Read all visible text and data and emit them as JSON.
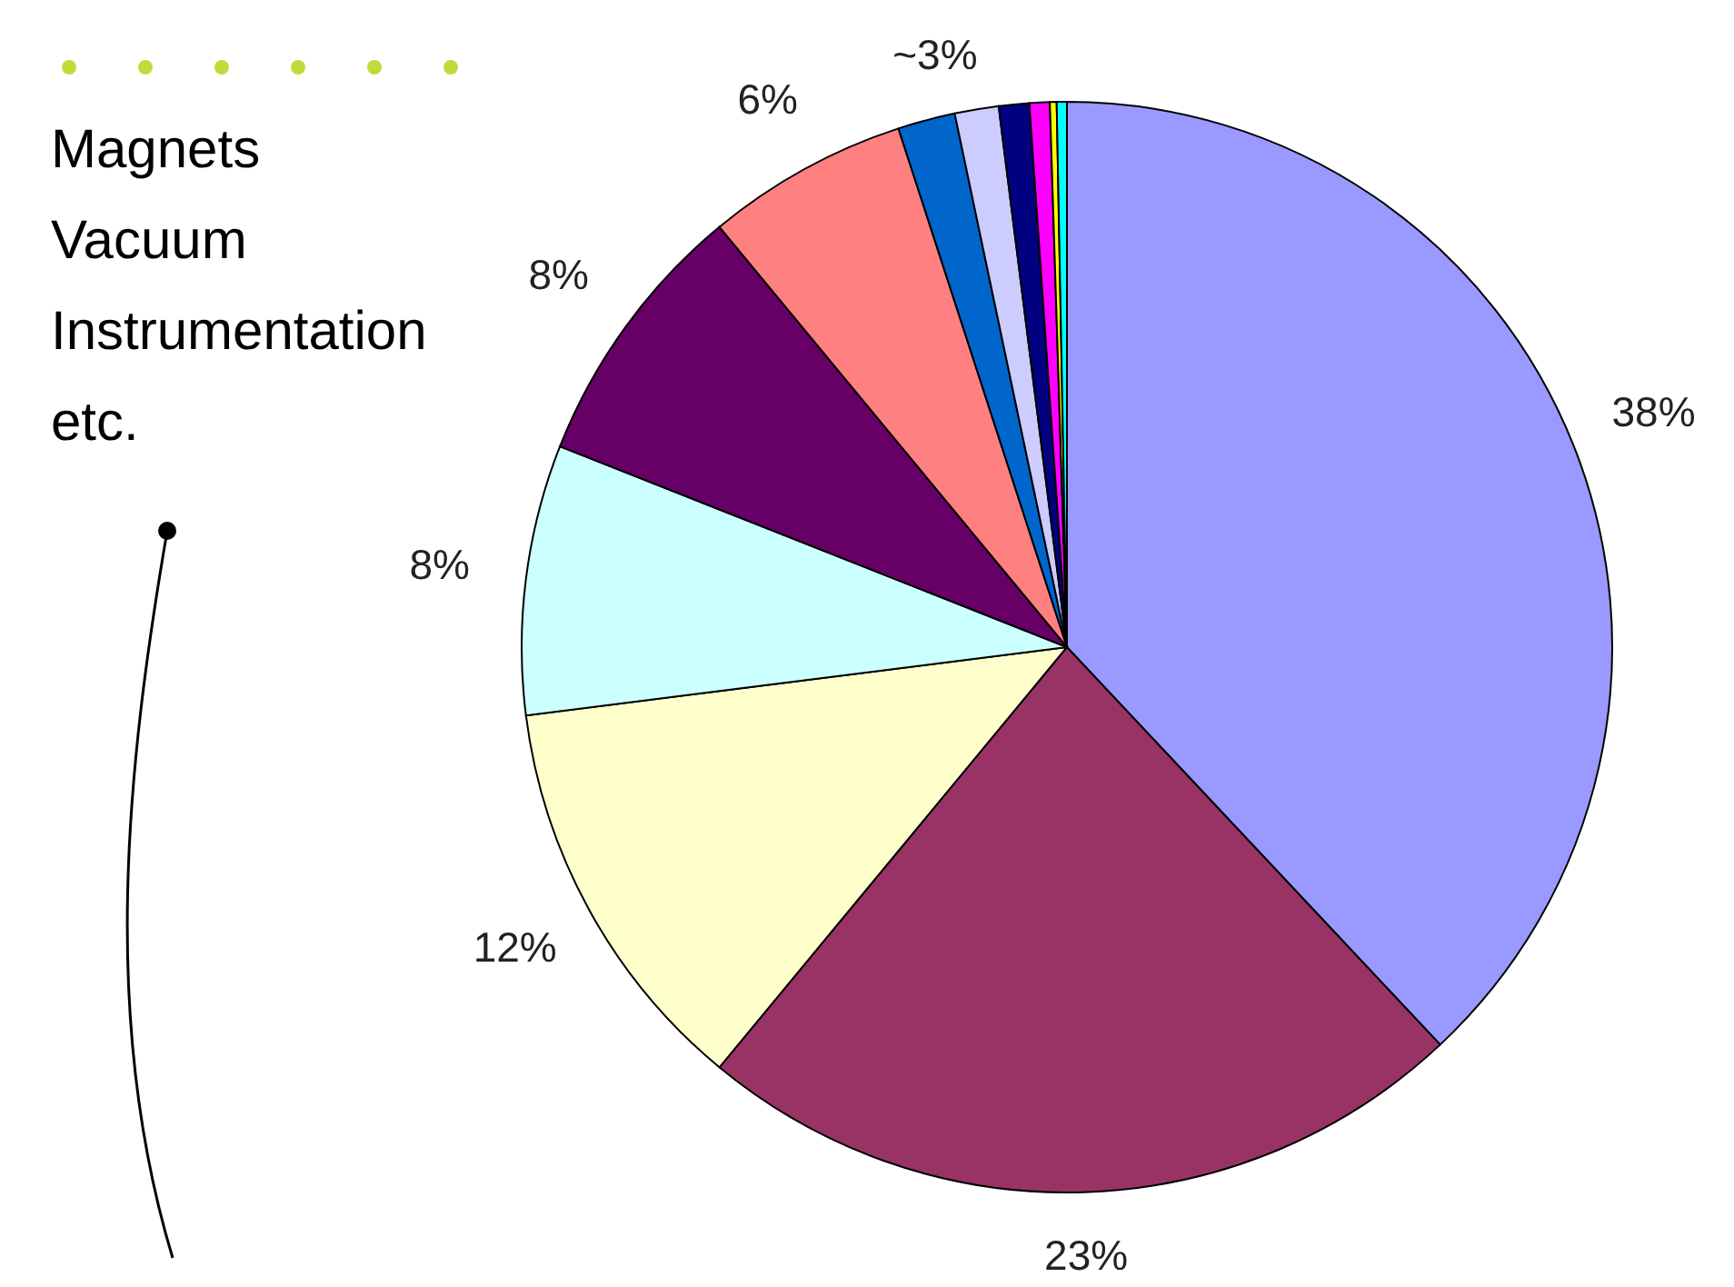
{
  "chart_data": {
    "type": "pie",
    "categories": [
      null,
      null,
      null,
      null,
      null,
      null,
      null,
      null,
      null,
      null,
      null,
      null
    ],
    "values": [
      38,
      23,
      12,
      8,
      8,
      6,
      1.7,
      1.3,
      0.9,
      0.6,
      0.2,
      0.3
    ],
    "colors": [
      "#9999ff",
      "#993366",
      "#ffffcc",
      "#ccffff",
      "#660066",
      "#ff8080",
      "#0066cc",
      "#ccccff",
      "#000080",
      "#ff00ff",
      "#ffff00",
      "#00ffff"
    ],
    "value_labels": [
      "38%",
      "23%",
      "12%",
      "8%",
      "8%",
      "6%",
      null,
      null,
      null,
      null,
      null,
      null
    ],
    "annotations": [
      "Magnets\nVacuum\nInstrumentation\netc.",
      "~3%"
    ]
  }
}
